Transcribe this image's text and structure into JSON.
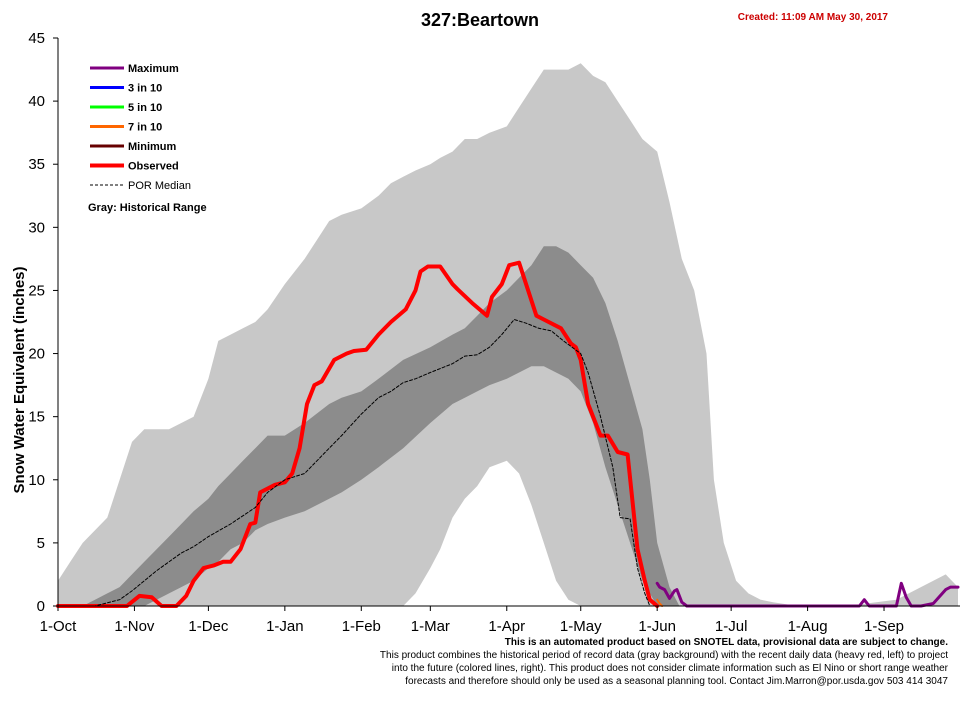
{
  "header": {
    "title": "327:Beartown",
    "created": "Created: 11:09 AM May 30, 2017"
  },
  "colors": {
    "range_outer": "#c8c8c8",
    "range_inner": "#8c8c8c",
    "observed": "#ff0000",
    "maximum": "#800080",
    "three_in_ten": "#0000ff",
    "five_in_ten": "#00ff00",
    "seven_in_ten": "#ff6600",
    "minimum": "#660000",
    "median": "#000000"
  },
  "legend": {
    "items": [
      {
        "label": "Maximum",
        "color": "#800080",
        "style": "line"
      },
      {
        "label": "3 in 10",
        "color": "#0000ff",
        "style": "line"
      },
      {
        "label": "5 in 10",
        "color": "#00ff00",
        "style": "line"
      },
      {
        "label": "7 in 10",
        "color": "#ff6600",
        "style": "line"
      },
      {
        "label": "Minimum",
        "color": "#660000",
        "style": "line"
      },
      {
        "label": "Observed",
        "color": "#ff0000",
        "style": "thick"
      },
      {
        "label": "POR Median",
        "color": "#000000",
        "style": "dashed"
      }
    ],
    "gray_note": "Gray: Historical Range"
  },
  "footnote": {
    "line1": "This is an automated product based on SNOTEL data, provisional data are subject to change.",
    "line2": "This product combines the historical period of record data (gray background) with the recent daily data (heavy red, left) to project",
    "line3": "into the future (colored lines, right). This product does not consider climate information such as El Nino or short range weather",
    "line4": "forecasts and therefore should only be used as a seasonal planning tool. Contact Jim.Marron@por.usda.gov 503 414 3047"
  },
  "chart_data": {
    "type": "area",
    "title": "327:Beartown",
    "xlabel": "",
    "ylabel": "Snow Water Equivalent (inches)",
    "ylim": [
      0,
      45
    ],
    "yticks": [
      0,
      5,
      10,
      15,
      20,
      25,
      30,
      35,
      40,
      45
    ],
    "xlim": [
      0,
      365
    ],
    "x_unit": "days since 1-Oct",
    "xticks": [
      {
        "label": "1-Oct",
        "day": 0
      },
      {
        "label": "1-Nov",
        "day": 31
      },
      {
        "label": "1-Dec",
        "day": 61
      },
      {
        "label": "1-Jan",
        "day": 92
      },
      {
        "label": "1-Feb",
        "day": 123
      },
      {
        "label": "1-Mar",
        "day": 151
      },
      {
        "label": "1-Apr",
        "day": 182
      },
      {
        "label": "1-May",
        "day": 212
      },
      {
        "label": "1-Jun",
        "day": 243
      },
      {
        "label": "1-Jul",
        "day": 273
      },
      {
        "label": "1-Aug",
        "day": 304
      },
      {
        "label": "1-Sep",
        "day": 335
      }
    ],
    "grid": false,
    "legend_position": "top-left",
    "historical_range": {
      "x": [
        0,
        5,
        10,
        20,
        30,
        35,
        40,
        45,
        50,
        55,
        61,
        65,
        70,
        75,
        80,
        85,
        92,
        100,
        105,
        110,
        115,
        123,
        130,
        135,
        140,
        145,
        151,
        155,
        160,
        165,
        170,
        175,
        182,
        187,
        192,
        197,
        202,
        207,
        212,
        217,
        222,
        227,
        232,
        237,
        243,
        248,
        253,
        258,
        263,
        266,
        270,
        275,
        280,
        285,
        290,
        300,
        320,
        340,
        360,
        365
      ],
      "high": [
        2,
        3.5,
        5,
        7,
        13,
        14,
        14,
        14,
        14.5,
        15,
        18,
        21,
        21.5,
        22,
        22.5,
        23.5,
        25.5,
        27.5,
        29,
        30.5,
        31,
        31.5,
        32.5,
        33.5,
        34,
        34.5,
        35,
        35.5,
        36,
        37,
        37,
        37.5,
        38,
        39.5,
        41,
        42.5,
        42.5,
        42.5,
        43,
        42,
        41.5,
        40,
        38.5,
        37,
        36,
        32,
        27.5,
        25,
        20,
        10,
        5,
        2,
        1,
        0.5,
        0.3,
        0,
        0,
        0.5,
        2.5,
        1.5
      ],
      "low": [
        0,
        0,
        0,
        0,
        0,
        0,
        0,
        0,
        0,
        0,
        0,
        0,
        0,
        0,
        0,
        0,
        0,
        0,
        0,
        0,
        0,
        0,
        0,
        0,
        0,
        1,
        3,
        4.5,
        7,
        8.5,
        9.5,
        11,
        11.5,
        10.5,
        8,
        5,
        2,
        0.5,
        0,
        0,
        0,
        0,
        0,
        0,
        0,
        0,
        0,
        0,
        0,
        0,
        0,
        0,
        0,
        0,
        0,
        0,
        0,
        0,
        0,
        0
      ]
    },
    "typical_range": {
      "x": [
        10,
        15,
        20,
        25,
        30,
        35,
        40,
        45,
        50,
        55,
        61,
        65,
        70,
        75,
        80,
        85,
        92,
        100,
        110,
        115,
        123,
        130,
        140,
        151,
        160,
        165,
        170,
        175,
        182,
        187,
        192,
        197,
        202,
        207,
        212,
        217,
        222,
        227,
        232,
        237,
        240,
        243,
        248,
        252
      ],
      "high": [
        0,
        0.5,
        1,
        1.5,
        2.5,
        3.5,
        4.5,
        5.5,
        6.5,
        7.5,
        8.5,
        9.5,
        10.5,
        11.5,
        12.5,
        13.5,
        13.5,
        14.5,
        16,
        16.5,
        17,
        18,
        19.5,
        20.5,
        21.5,
        22,
        23,
        24,
        25,
        26,
        27,
        28.5,
        28.5,
        28,
        27,
        26,
        24,
        21,
        17.5,
        14,
        10,
        5,
        1.5,
        0
      ],
      "low": [
        0,
        0,
        0,
        0,
        0,
        0,
        0.5,
        1,
        1.5,
        2,
        3,
        3.5,
        4.5,
        5,
        6,
        6.5,
        7,
        7.5,
        8.5,
        9,
        10,
        11,
        12.5,
        14.5,
        16,
        16.5,
        17,
        17.5,
        18,
        18.5,
        19,
        19,
        18.5,
        18,
        17,
        14.5,
        11,
        8,
        5,
        2,
        1,
        0,
        0,
        0
      ]
    },
    "series": [
      {
        "name": "Observed",
        "color": "#ff0000",
        "x": [
          0,
          28,
          33,
          38,
          42,
          48,
          52,
          55,
          59,
          63,
          67,
          70,
          74,
          78,
          80,
          82,
          88,
          92,
          95,
          98,
          101,
          104,
          107,
          112,
          117,
          120,
          125,
          130,
          135,
          141,
          145,
          147,
          150,
          155,
          160,
          162,
          168,
          174,
          176,
          180,
          183,
          187,
          189,
          194,
          197,
          204,
          208,
          210,
          212,
          215,
          220,
          223,
          227,
          231,
          235,
          238,
          240,
          243
        ],
        "values": [
          0,
          0,
          0.8,
          0.7,
          0,
          0,
          0.8,
          2,
          3,
          3.2,
          3.5,
          3.5,
          4.5,
          6.5,
          6.6,
          9,
          9.6,
          9.8,
          10.5,
          12.5,
          16,
          17.5,
          17.8,
          19.5,
          20,
          20.2,
          20.3,
          21.5,
          22.5,
          23.5,
          25,
          26.5,
          26.9,
          26.9,
          25.5,
          25.1,
          24,
          23,
          24.5,
          25.5,
          27,
          27.2,
          26,
          23,
          22.7,
          22,
          20.8,
          20.5,
          19.5,
          16,
          13.5,
          13.5,
          12.2,
          12,
          4.5,
          2,
          0.5,
          0
        ]
      },
      {
        "name": "POR Median",
        "color": "#000000",
        "x": [
          0,
          15,
          25,
          30,
          40,
          50,
          55,
          61,
          70,
          80,
          85,
          92,
          100,
          110,
          115,
          123,
          130,
          135,
          140,
          145,
          151,
          160,
          165,
          170,
          175,
          180,
          185,
          190,
          195,
          200,
          205,
          212,
          215,
          220,
          225,
          228,
          232,
          235,
          238,
          240
        ],
        "values": [
          0,
          0,
          0.5,
          1.2,
          2.8,
          4.2,
          4.7,
          5.5,
          6.5,
          7.8,
          9,
          10,
          10.5,
          12.5,
          13.5,
          15.2,
          16.5,
          17,
          17.7,
          18,
          18.5,
          19.2,
          19.8,
          19.9,
          20.5,
          21.5,
          22.7,
          22.4,
          22,
          21.8,
          21,
          20,
          18.5,
          15,
          11,
          7,
          6.9,
          3,
          1,
          0
        ]
      },
      {
        "name": "Maximum",
        "color": "#800080",
        "x": [
          243,
          244,
          246,
          248,
          250,
          251,
          253,
          255,
          258,
          262,
          270,
          300,
          325,
          327,
          329,
          340,
          342,
          344,
          346,
          350,
          355,
          360,
          362,
          365
        ],
        "values": [
          1.8,
          1.5,
          1.3,
          0.6,
          1.2,
          1.3,
          0.3,
          0,
          0,
          0,
          0,
          0,
          0,
          0.5,
          0,
          0,
          1.8,
          0.7,
          0,
          0,
          0.2,
          1.3,
          1.5,
          1.5
        ]
      },
      {
        "name": "7 in 10",
        "color": "#ff6600",
        "x": [
          243,
          244,
          245
        ],
        "values": [
          0.5,
          0.2,
          0
        ]
      }
    ]
  }
}
